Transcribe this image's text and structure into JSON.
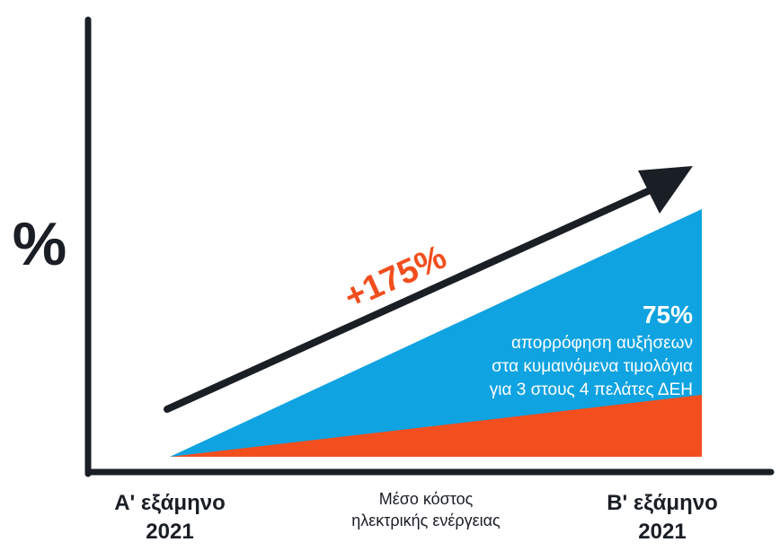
{
  "chart_data": {
    "type": "area",
    "y_axis_symbol": "%",
    "categories": [
      "Α' εξάμηνο 2021",
      "Β' εξάμηνο 2021"
    ],
    "category_lines": [
      [
        "Α' εξάμηνο",
        "2021"
      ],
      [
        "Β' εξάμηνο",
        "2021"
      ]
    ],
    "center_label_lines": [
      "Μέσο κόστος",
      "ηλεκτρικής ενέργειας"
    ],
    "arrow_label": "+175%",
    "series": [
      {
        "name": "",
        "values": [
          0,
          100
        ],
        "color": "#0FA3E1"
      },
      {
        "name": "",
        "values": [
          0,
          25
        ],
        "color": "#F24E1E"
      }
    ],
    "annotation": {
      "value": "75%",
      "lines": [
        "απορρόφηση αυξήσεων",
        "στα κυμαινόμενα τιμολόγια",
        "για 3 στους 4 πελάτες ΔΕΗ"
      ]
    },
    "grid": false,
    "legend": "none"
  },
  "colors": {
    "axis": "#1A1E25",
    "blue_area": "#0FA3E1",
    "orange_area": "#F24E1E",
    "arrow": "#1A1E25",
    "arrow_label": "#F24E1E",
    "annotation_text": "#FFFFFF",
    "category_text": "#1A1E25"
  }
}
